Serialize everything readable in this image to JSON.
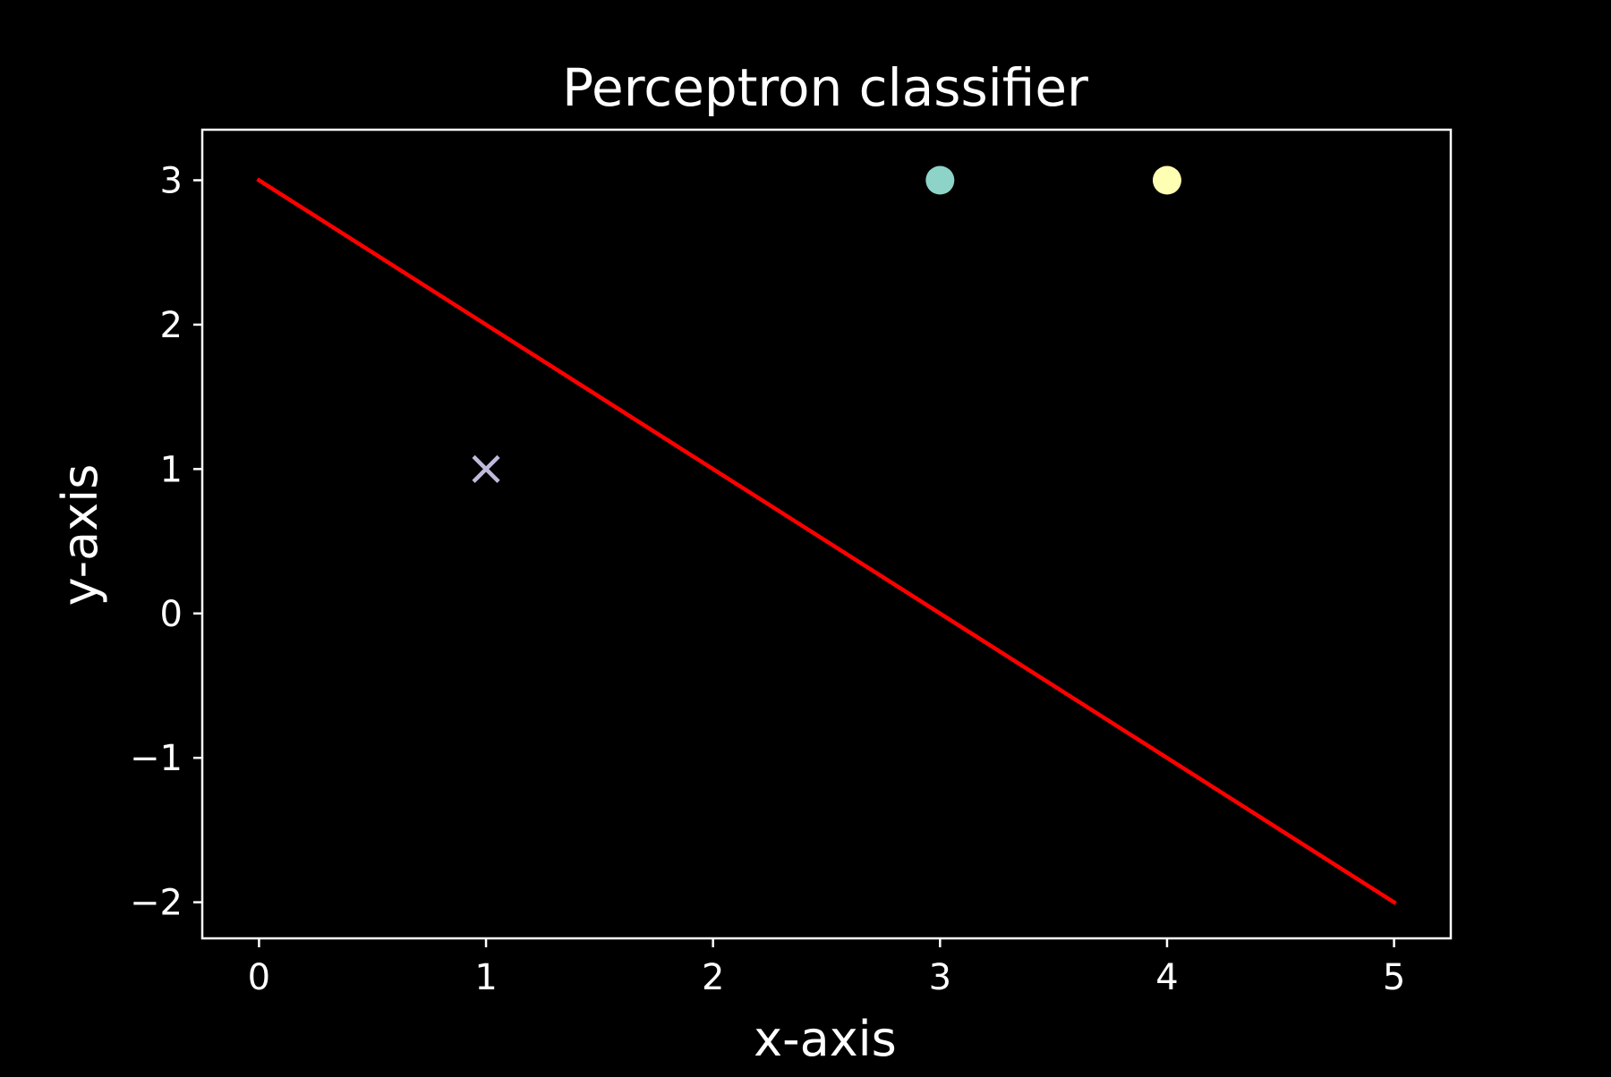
{
  "chart_data": {
    "type": "scatter",
    "title": "Perceptron classifier",
    "xlabel": "x-axis",
    "ylabel": "y-axis",
    "xlim": [
      -0.25,
      5.25
    ],
    "ylim": [
      -2.25,
      3.35
    ],
    "xticks": [
      0,
      1,
      2,
      3,
      4,
      5
    ],
    "xtick_labels": [
      "0",
      "1",
      "2",
      "3",
      "4",
      "5"
    ],
    "yticks": [
      -2,
      -1,
      0,
      1,
      2,
      3
    ],
    "ytick_labels": [
      "−2",
      "−1",
      "0",
      "1",
      "2",
      "3"
    ],
    "grid": false,
    "legend": "none",
    "points": [
      {
        "x": 3,
        "y": 3,
        "marker": "circle",
        "color": "#8dd3c7"
      },
      {
        "x": 4,
        "y": 3,
        "marker": "circle",
        "color": "#ffffb3"
      },
      {
        "x": 1,
        "y": 1,
        "marker": "x",
        "color": "#bebada"
      }
    ],
    "lines": [
      {
        "x": [
          0,
          5
        ],
        "y": [
          3,
          -2
        ],
        "color": "#ff0000"
      }
    ],
    "colors": {
      "background": "#000000",
      "axes": "#ffffff",
      "text": "#ffffff"
    }
  }
}
